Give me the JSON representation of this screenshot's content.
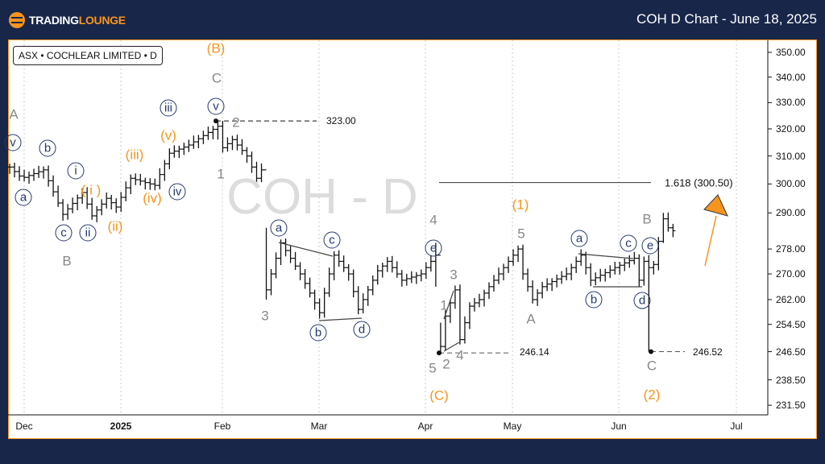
{
  "header": {
    "brand_a": "Trading",
    "brand_b": "Lounge",
    "title": "COH D Chart - June 18, 2025"
  },
  "legend": "ASX • COCHLEAR LIMITED • D",
  "watermark": "COH - D",
  "colors": {
    "background": "#18264a",
    "accent": "#f7941d",
    "wave_circle": "#24386e",
    "wave_gray": "#888888"
  },
  "chart_data": {
    "type": "ohlc-bar",
    "scale": "log",
    "ylim": [
      229,
      356
    ],
    "y_ticks": [
      "350.00",
      "340.00",
      "330.00",
      "320.00",
      "310.00",
      "300.00",
      "290.00",
      "278.00",
      "270.00",
      "262.00",
      "254.50",
      "246.50",
      "238.50",
      "231.50"
    ],
    "y_tick_values": [
      350,
      340,
      330,
      320,
      310,
      300,
      290,
      278,
      270,
      262,
      254.5,
      246.5,
      238.5,
      231.5
    ],
    "x_ticks": [
      "Dec",
      "2025",
      "Feb",
      "Mar",
      "Apr",
      "May",
      "Jun",
      "Jul"
    ],
    "bar_count": 138,
    "close_path": [
      [
        0,
        306
      ],
      [
        2.5,
        302
      ],
      [
        7,
        305
      ],
      [
        11,
        289.5
      ],
      [
        15,
        297
      ],
      [
        17,
        289
      ],
      [
        20,
        295
      ],
      [
        22,
        292
      ],
      [
        25,
        302
      ],
      [
        30,
        299.5
      ],
      [
        33,
        311
      ],
      [
        37,
        314
      ],
      [
        43,
        321
      ],
      [
        44,
        313
      ],
      [
        46,
        316
      ],
      [
        49,
        310
      ],
      [
        51,
        302
      ],
      [
        52,
        305
      ],
      [
        53,
        265
      ],
      [
        56,
        280
      ],
      [
        60,
        270
      ],
      [
        64,
        258
      ],
      [
        67,
        276
      ],
      [
        70,
        270
      ],
      [
        72,
        259
      ],
      [
        76,
        271
      ],
      [
        78,
        274
      ],
      [
        81,
        268
      ],
      [
        85,
        270
      ],
      [
        88,
        276
      ],
      [
        89,
        248
      ],
      [
        90,
        257
      ],
      [
        92,
        265
      ],
      [
        93,
        250
      ],
      [
        95,
        260
      ],
      [
        97,
        262
      ],
      [
        100,
        268
      ],
      [
        103,
        274
      ],
      [
        105,
        278
      ],
      [
        106,
        270
      ],
      [
        108,
        262
      ],
      [
        110,
        266
      ],
      [
        115,
        270
      ],
      [
        118,
        276
      ],
      [
        120,
        268
      ],
      [
        125,
        272
      ],
      [
        129,
        275
      ],
      [
        130,
        268
      ],
      [
        131,
        274
      ],
      [
        132,
        272
      ],
      [
        133,
        273
      ],
      [
        135,
        288
      ],
      [
        136,
        285
      ],
      [
        137,
        284
      ]
    ],
    "range_overrides": [
      [
        43,
        323,
        316
      ],
      [
        53,
        285,
        262
      ],
      [
        88,
        280,
        266
      ],
      [
        89,
        255,
        246.14
      ],
      [
        132,
        276,
        246.52
      ],
      [
        135,
        290,
        280
      ]
    ],
    "levels": [
      {
        "label": "323.00",
        "value": 323
      },
      {
        "label": "246.14",
        "value": 246.14
      },
      {
        "label": "246.52",
        "value": 246.52
      },
      {
        "label": "1.618 (300.50)",
        "value": 300.5
      }
    ],
    "waves": {
      "gray": [
        "A",
        "B",
        "C",
        "1",
        "2",
        "3",
        "4",
        "5",
        "1",
        "3",
        "2",
        "4",
        "5",
        "A",
        "B",
        "C"
      ],
      "orange": [
        "(B)",
        "(v)",
        "(iii)",
        "( i )",
        "(ii)",
        "(iv)",
        "(1)",
        "(C)",
        "(2)"
      ],
      "circled": [
        "v",
        "a",
        "b",
        "i",
        "c",
        "ii",
        "iii",
        "v",
        "iv",
        "a",
        "c",
        "b",
        "d",
        "e",
        "a",
        "c",
        "e",
        "b",
        "d"
      ]
    }
  }
}
